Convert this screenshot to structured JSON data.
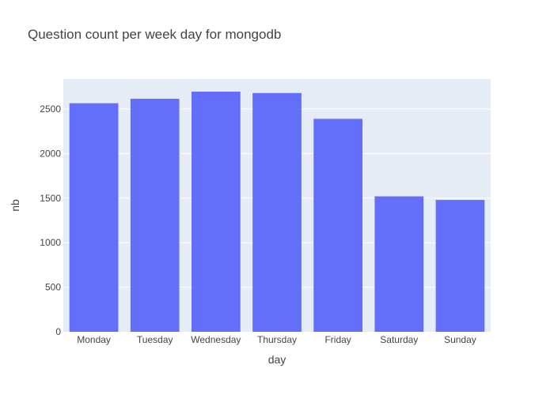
{
  "chart_data": {
    "type": "bar",
    "title": "Question count per week day for mongodb",
    "xlabel": "day",
    "ylabel": "nb",
    "categories": [
      "Monday",
      "Tuesday",
      "Wednesday",
      "Thursday",
      "Friday",
      "Saturday",
      "Sunday"
    ],
    "values": [
      2565,
      2615,
      2695,
      2680,
      2390,
      1520,
      1480
    ],
    "ylim": [
      0,
      2837
    ],
    "yticks": [
      0,
      500,
      1000,
      1500,
      2000,
      2500
    ],
    "grid": true,
    "legend": "none",
    "colors": {
      "bar": "#636efa",
      "plot_background": "#e5ecf6",
      "grid": "#ffffff",
      "text": "#444444"
    }
  }
}
